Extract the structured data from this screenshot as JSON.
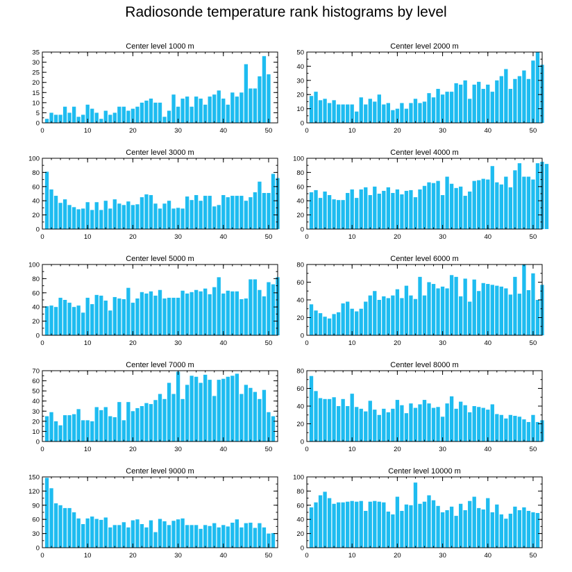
{
  "title": "Radiosonde temperature rank histograms by level",
  "colors": {
    "bar": "#1ebcf0",
    "axis": "#000000",
    "background": "#ffffff"
  },
  "chart_data": [
    {
      "type": "bar",
      "title": "Center level 1000 m",
      "ylim": [
        0,
        35
      ],
      "yticks": [
        0,
        5,
        10,
        15,
        20,
        25,
        30,
        35
      ],
      "xlim": [
        0,
        52
      ],
      "xticks": [
        0,
        10,
        20,
        30,
        40,
        50
      ],
      "values": [
        2,
        5,
        4,
        4,
        8,
        5,
        8,
        3,
        4,
        9,
        7,
        5,
        2,
        6,
        4,
        5,
        8,
        8,
        6,
        7,
        8,
        10,
        11,
        12,
        10,
        10,
        3,
        6,
        14,
        8,
        12,
        13,
        8,
        13,
        12,
        9,
        13,
        14,
        16,
        12,
        9,
        15,
        13,
        15,
        29,
        17,
        17,
        23,
        33,
        24
      ]
    },
    {
      "type": "bar",
      "title": "Center level 2000 m",
      "ylim": [
        0,
        50
      ],
      "yticks": [
        0,
        10,
        20,
        30,
        40,
        50
      ],
      "xlim": [
        0,
        52
      ],
      "xticks": [
        0,
        10,
        20,
        30,
        40,
        50
      ],
      "values": [
        19,
        22,
        16,
        17,
        14,
        16,
        13,
        13,
        13,
        13,
        8,
        18,
        13,
        17,
        15,
        20,
        13,
        14,
        9,
        10,
        14,
        10,
        14,
        17,
        14,
        15,
        21,
        18,
        24,
        20,
        22,
        22,
        28,
        27,
        30,
        17,
        27,
        29,
        24,
        27,
        22,
        30,
        33,
        38,
        24,
        31,
        33,
        37,
        31,
        44,
        50,
        41
      ]
    },
    {
      "type": "bar",
      "title": "Center level 3000 m",
      "ylim": [
        0,
        100
      ],
      "yticks": [
        0,
        20,
        40,
        60,
        80,
        100
      ],
      "xlim": [
        0,
        52
      ],
      "xticks": [
        0,
        10,
        20,
        30,
        40,
        50
      ],
      "values": [
        81,
        56,
        47,
        37,
        42,
        34,
        31,
        28,
        29,
        38,
        27,
        38,
        27,
        40,
        29,
        42,
        36,
        34,
        39,
        34,
        35,
        45,
        49,
        48,
        36,
        29,
        36,
        40,
        29,
        30,
        29,
        46,
        41,
        48,
        40,
        47,
        47,
        32,
        34,
        48,
        45,
        47,
        47,
        47,
        40,
        45,
        52,
        67,
        51,
        51,
        78,
        72
      ]
    },
    {
      "type": "bar",
      "title": "Center level 4000 m",
      "ylim": [
        0,
        100
      ],
      "yticks": [
        0,
        20,
        40,
        60,
        80,
        100
      ],
      "xlim": [
        0,
        52
      ],
      "xticks": [
        0,
        10,
        20,
        30,
        40,
        50
      ],
      "values": [
        52,
        55,
        44,
        53,
        48,
        42,
        41,
        41,
        51,
        56,
        44,
        56,
        59,
        48,
        60,
        50,
        54,
        59,
        51,
        56,
        49,
        54,
        55,
        45,
        56,
        61,
        66,
        65,
        68,
        48,
        74,
        64,
        58,
        60,
        47,
        53,
        68,
        69,
        71,
        70,
        89,
        66,
        63,
        74,
        59,
        83,
        93,
        74,
        74,
        70,
        93,
        95,
        92
      ]
    },
    {
      "type": "bar",
      "title": "Center level 5000 m",
      "ylim": [
        0,
        100
      ],
      "yticks": [
        0,
        20,
        40,
        60,
        80,
        100
      ],
      "xlim": [
        0,
        52
      ],
      "xticks": [
        0,
        10,
        20,
        30,
        40,
        50
      ],
      "values": [
        41,
        42,
        40,
        53,
        50,
        46,
        40,
        42,
        32,
        53,
        44,
        57,
        56,
        49,
        35,
        54,
        52,
        51,
        67,
        46,
        52,
        61,
        59,
        62,
        56,
        64,
        52,
        53,
        53,
        53,
        63,
        59,
        61,
        64,
        62,
        66,
        58,
        68,
        82,
        59,
        63,
        62,
        62,
        51,
        52,
        79,
        79,
        64,
        55,
        75,
        72,
        82
      ]
    },
    {
      "type": "bar",
      "title": "Center level 6000 m",
      "ylim": [
        0,
        80
      ],
      "yticks": [
        0,
        20,
        40,
        60,
        80
      ],
      "xlim": [
        0,
        52
      ],
      "xticks": [
        0,
        10,
        20,
        30,
        40,
        50
      ],
      "values": [
        35,
        28,
        25,
        21,
        19,
        24,
        26,
        36,
        38,
        30,
        27,
        30,
        38,
        45,
        50,
        40,
        44,
        42,
        45,
        52,
        42,
        56,
        45,
        41,
        66,
        45,
        60,
        58,
        53,
        55,
        53,
        68,
        66,
        44,
        64,
        38,
        63,
        50,
        59,
        58,
        57,
        56,
        55,
        53,
        46,
        66,
        47,
        80,
        51,
        70,
        40,
        57
      ]
    },
    {
      "type": "bar",
      "title": "Center level 7000 m",
      "ylim": [
        0,
        70
      ],
      "yticks": [
        0,
        10,
        20,
        30,
        40,
        50,
        60,
        70
      ],
      "xlim": [
        0,
        52
      ],
      "xticks": [
        0,
        10,
        20,
        30,
        40,
        50
      ],
      "values": [
        25,
        29,
        20,
        16,
        26,
        26,
        27,
        32,
        21,
        21,
        20,
        34,
        31,
        34,
        25,
        24,
        39,
        21,
        39,
        30,
        33,
        35,
        38,
        37,
        41,
        47,
        42,
        58,
        47,
        69,
        42,
        56,
        65,
        64,
        58,
        66,
        61,
        45,
        61,
        62,
        64,
        65,
        67,
        47,
        56,
        53,
        49,
        42,
        51,
        29,
        25
      ]
    },
    {
      "type": "bar",
      "title": "Center level 8000 m",
      "ylim": [
        0,
        80
      ],
      "yticks": [
        0,
        20,
        40,
        60,
        80
      ],
      "xlim": [
        0,
        52
      ],
      "xticks": [
        0,
        10,
        20,
        30,
        40,
        50
      ],
      "values": [
        74,
        57,
        49,
        48,
        48,
        50,
        40,
        48,
        40,
        54,
        39,
        37,
        34,
        46,
        36,
        30,
        37,
        33,
        37,
        47,
        41,
        32,
        43,
        38,
        42,
        47,
        43,
        38,
        39,
        28,
        43,
        51,
        37,
        45,
        41,
        33,
        40,
        39,
        38,
        36,
        42,
        31,
        30,
        26,
        30,
        29,
        28,
        25,
        22,
        30,
        22,
        24
      ]
    },
    {
      "type": "bar",
      "title": "Center level 9000 m",
      "ylim": [
        0,
        150
      ],
      "yticks": [
        0,
        30,
        60,
        90,
        120,
        150
      ],
      "xlim": [
        0,
        52
      ],
      "xticks": [
        0,
        10,
        20,
        30,
        40,
        50
      ],
      "values": [
        148,
        126,
        94,
        90,
        84,
        84,
        75,
        62,
        50,
        62,
        66,
        61,
        59,
        64,
        43,
        48,
        48,
        54,
        43,
        58,
        60,
        50,
        43,
        58,
        33,
        61,
        56,
        48,
        57,
        60,
        62,
        48,
        48,
        48,
        40,
        48,
        46,
        52,
        43,
        48,
        45,
        53,
        60,
        43,
        52,
        53,
        42,
        52,
        43,
        30,
        31
      ]
    },
    {
      "type": "bar",
      "title": "Center level 10000 m",
      "ylim": [
        0,
        100
      ],
      "yticks": [
        0,
        20,
        40,
        60,
        80,
        100
      ],
      "xlim": [
        0,
        52
      ],
      "xticks": [
        0,
        10,
        20,
        30,
        40,
        50
      ],
      "values": [
        57,
        64,
        74,
        79,
        70,
        62,
        64,
        64,
        65,
        66,
        65,
        66,
        52,
        65,
        66,
        65,
        64,
        51,
        47,
        72,
        52,
        61,
        60,
        92,
        62,
        65,
        74,
        67,
        59,
        50,
        53,
        58,
        45,
        62,
        53,
        66,
        72,
        56,
        54,
        70,
        50,
        61,
        47,
        41,
        48,
        58,
        53,
        57,
        52,
        50,
        49
      ]
    }
  ]
}
